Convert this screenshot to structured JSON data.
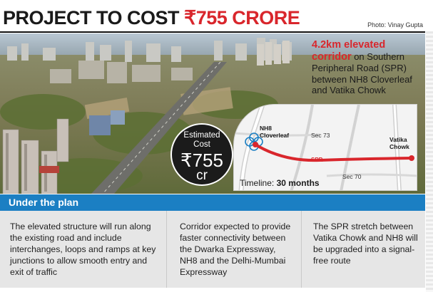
{
  "headline": {
    "prefix": "PROJECT TO COST ",
    "amount": "₹755 CRORE"
  },
  "credit": "Photo: Vinay Gupta",
  "corridor": {
    "highlight": "4.2km elevated corridor",
    "rest": " on Southern Peripheral Road (SPR) between NH8 Cloverleaf and Vatika Chowk"
  },
  "cost": {
    "label_line1": "Estimated",
    "label_line2": "Cost",
    "value": "₹755",
    "unit": "cr"
  },
  "map": {
    "nh8": "NH8 Cloverleaf",
    "sec73": "Sec 73",
    "vatika": "Vatika Chowk",
    "spr": "SPR",
    "sec70": "Sec 70",
    "timeline_label": "Timeline: ",
    "timeline_value": "30 months"
  },
  "plan": {
    "title": "Under the plan",
    "points": [
      "The elevated structure will run along the existing road and include interchanges, loops and ramps at key junctions to allow smooth entry and exit of traffic",
      "Corridor expected to provide faster connectivity between the Dwarka Expressway, NH8 and the Delhi-Mumbai Expressway",
      "The SPR stretch between Vatika Chowk and NH8 will be upgraded into a signal-free route"
    ]
  },
  "colors": {
    "accent_red": "#d9262c",
    "plan_blue": "#1b7fc3",
    "plan_bg": "#e6e6e6"
  }
}
